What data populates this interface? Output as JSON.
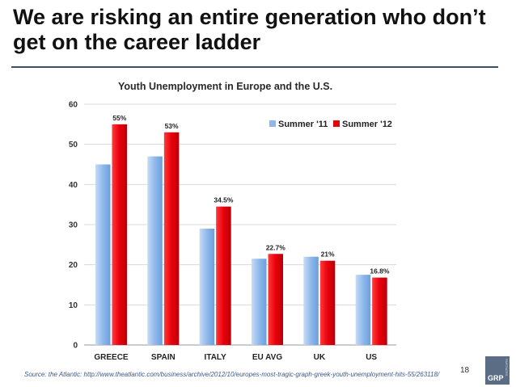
{
  "slide": {
    "title": "We are risking an entire generation who don’t get on the career ladder",
    "source": "Source: the Atlantic: http://www.theatlantic.com/business/archive/2012/10/europes-most-tragic-graph-greek-youth-unemployment-hits-55/263118/",
    "page_number": "18",
    "logo_text": "GRP",
    "logo_subtext": "PARTNERS"
  },
  "chart_data": {
    "type": "bar",
    "title": "Youth Unemployment in Europe and the U.S.",
    "xlabel": "",
    "ylabel": "",
    "categories": [
      "GREECE",
      "SPAIN",
      "ITALY",
      "EU AVG",
      "UK",
      "US"
    ],
    "series": [
      {
        "name": "Summer '11",
        "values": [
          45,
          47,
          29,
          21.5,
          22,
          17.5
        ],
        "color": "#8fb8ea",
        "labels": [
          "",
          "",
          "",
          "",
          "",
          ""
        ]
      },
      {
        "name": "Summer '12",
        "values": [
          55,
          53,
          34.5,
          22.7,
          21,
          16.8
        ],
        "color": "#e8000b",
        "labels": [
          "55%",
          "53%",
          "34.5%",
          "22.7%",
          "21%",
          "16.8%"
        ]
      }
    ],
    "ylim": [
      0,
      60
    ],
    "yticks": [
      0,
      10,
      20,
      30,
      40,
      50,
      60
    ],
    "grid": true,
    "legend": "top-right"
  }
}
